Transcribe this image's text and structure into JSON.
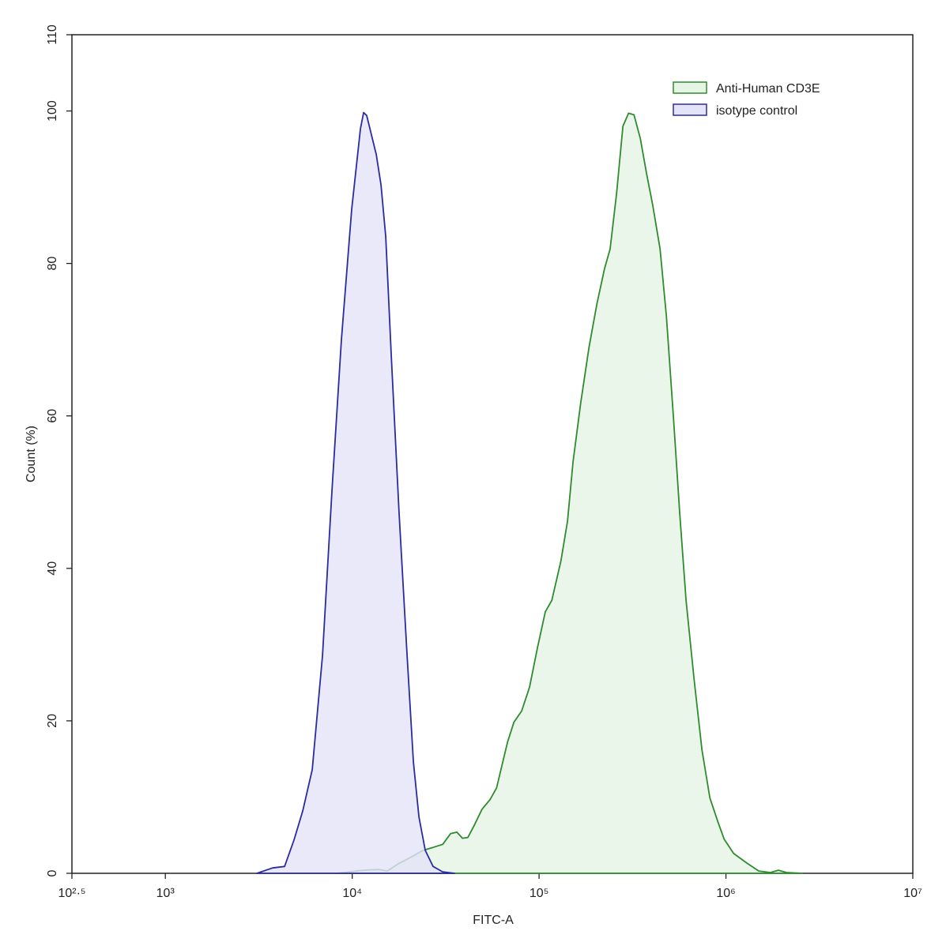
{
  "chart_data": {
    "type": "area",
    "xlabel": "FITC-A",
    "ylabel": "Count (%)",
    "xscale": "log",
    "xlim": [
      316.228,
      10000000
    ],
    "xticks": [
      {
        "value": 316.228,
        "label": "10²·⁵"
      },
      {
        "value": 1000,
        "label": "10³"
      },
      {
        "value": 10000,
        "label": "10⁴"
      },
      {
        "value": 100000,
        "label": "10⁵"
      },
      {
        "value": 1000000,
        "label": "10⁶"
      },
      {
        "value": 10000000,
        "label": "10⁷"
      }
    ],
    "ylim": [
      0,
      110
    ],
    "yticks": [
      0,
      20,
      40,
      60,
      80,
      100,
      110
    ],
    "legend": "upper right",
    "series": [
      {
        "name": "Anti-Human CD3E",
        "color": "#2e8b2e",
        "fill": "#e6f4e6",
        "x": [
          8180,
          11500,
          14000,
          15400,
          17800,
          20600,
          23900,
          27100,
          30500,
          33600,
          36300,
          38900,
          41600,
          45000,
          49500,
          54700,
          59200,
          63200,
          67800,
          73300,
          80700,
          88900,
          98100,
          108000,
          117000,
          131000,
          142000,
          152000,
          167000,
          185000,
          204000,
          224000,
          240000,
          260000,
          281000,
          301000,
          322000,
          348000,
          376000,
          406000,
          444000,
          480000,
          524000,
          566000,
          612000,
          675000,
          744000,
          820000,
          904000,
          977000,
          1100000,
          1300000,
          1500000,
          1730000,
          1910000,
          2110000,
          2560000
        ],
        "values": [
          0,
          0.4,
          0.5,
          0.3,
          1.3,
          2.1,
          3.0,
          3.4,
          3.8,
          5.2,
          5.4,
          4.6,
          4.7,
          6.3,
          8.4,
          9.7,
          11.2,
          14.1,
          17.2,
          19.8,
          21.3,
          24.4,
          29.6,
          34.3,
          35.8,
          41.0,
          46.2,
          54.0,
          61.7,
          69.0,
          74.7,
          79.3,
          81.9,
          89.2,
          98.0,
          99.7,
          99.5,
          96.4,
          91.8,
          87.6,
          81.9,
          73.1,
          59.7,
          47.2,
          35.8,
          25.5,
          16.2,
          9.9,
          6.8,
          4.5,
          2.6,
          1.3,
          0.3,
          0.1,
          0.4,
          0.1,
          0
        ]
      },
      {
        "name": "isotype control",
        "color": "#2b2ba0",
        "fill": "#e4e4f8",
        "x": [
          3090,
          3750,
          4345,
          4885,
          5435,
          6110,
          6935,
          7795,
          8750,
          9940,
          11070,
          11510,
          11960,
          13450,
          14260,
          15110,
          16180,
          17830,
          19660,
          21250,
          22750,
          24600,
          27100,
          30480,
          35250
        ],
        "values": [
          0,
          0.7,
          0.9,
          4.4,
          8.2,
          13.6,
          28.6,
          50.3,
          70.0,
          87.1,
          97.7,
          99.8,
          99.4,
          94.3,
          90.3,
          83.5,
          67.9,
          47.2,
          28.6,
          14.6,
          7.4,
          3.0,
          0.9,
          0.2,
          0
        ]
      }
    ]
  }
}
